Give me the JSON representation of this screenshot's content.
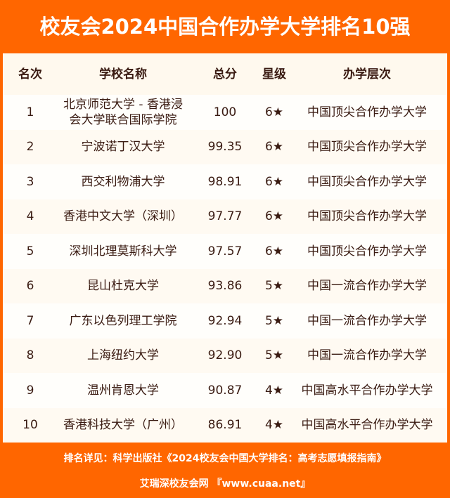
{
  "title": "校友会2024中国合作办学大学排名10强",
  "colors": {
    "frame": "#ff6600",
    "text": "#3a1b12",
    "background": "#fffdf7"
  },
  "table": {
    "headers": [
      "名次",
      "学校名称",
      "总分",
      "星级",
      "办学层次"
    ],
    "rows": [
      {
        "rank": "1",
        "name": "北京师范大学 - 香港浸会大学联合国际学院",
        "score": "100",
        "stars": "6★",
        "level": "中国顶尖合作办学大学"
      },
      {
        "rank": "2",
        "name": "宁波诺丁汉大学",
        "score": "99.35",
        "stars": "6★",
        "level": "中国顶尖合作办学大学"
      },
      {
        "rank": "3",
        "name": "西交利物浦大学",
        "score": "98.91",
        "stars": "6★",
        "level": "中国顶尖合作办学大学"
      },
      {
        "rank": "4",
        "name": "香港中文大学（深圳）",
        "score": "97.77",
        "stars": "6★",
        "level": "中国顶尖合作办学大学"
      },
      {
        "rank": "5",
        "name": "深圳北理莫斯科大学",
        "score": "97.57",
        "stars": "6★",
        "level": "中国顶尖合作办学大学"
      },
      {
        "rank": "6",
        "name": "昆山杜克大学",
        "score": "93.86",
        "stars": "5★",
        "level": "中国一流合作办学大学"
      },
      {
        "rank": "7",
        "name": "广东以色列理工学院",
        "score": "92.94",
        "stars": "5★",
        "level": "中国一流合作办学大学"
      },
      {
        "rank": "8",
        "name": "上海纽约大学",
        "score": "92.90",
        "stars": "5★",
        "level": "中国一流合作办学大学"
      },
      {
        "rank": "9",
        "name": "温州肯恩大学",
        "score": "90.87",
        "stars": "4★",
        "level": "中国高水平合作办学大学"
      },
      {
        "rank": "10",
        "name": "香港科技大学（广州）",
        "score": "86.91",
        "stars": "4★",
        "level": "中国高水平合作办学大学"
      }
    ]
  },
  "footer": {
    "source": "排名详见：科学出版社《2024校友会中国大学排名：高考志愿填报指南》",
    "site": "艾瑞深校友会网 『www.cuaa.net』"
  }
}
